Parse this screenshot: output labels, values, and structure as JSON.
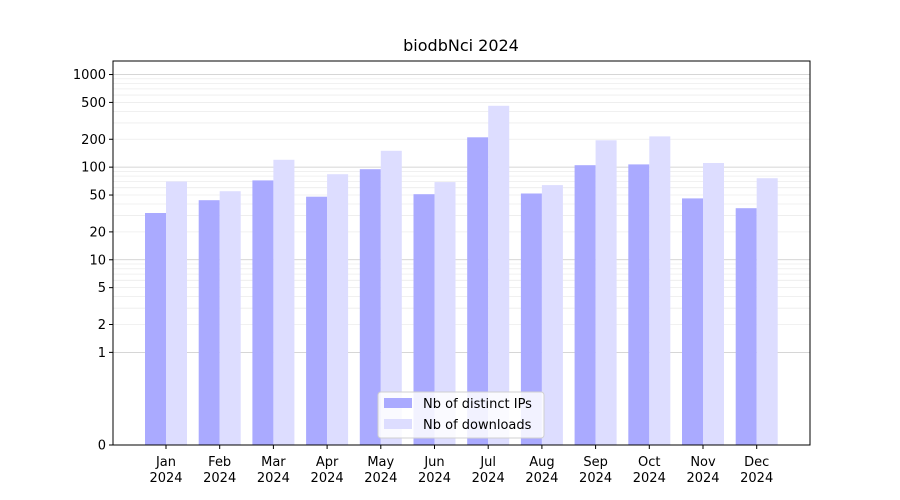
{
  "chart_data": {
    "type": "bar",
    "title": "biodbNci 2024",
    "xlabel": "",
    "ylabel": "",
    "scale": "symlog",
    "ylim": [
      0,
      1400
    ],
    "categories": [
      {
        "month": "Jan",
        "year": "2024"
      },
      {
        "month": "Feb",
        "year": "2024"
      },
      {
        "month": "Mar",
        "year": "2024"
      },
      {
        "month": "Apr",
        "year": "2024"
      },
      {
        "month": "May",
        "year": "2024"
      },
      {
        "month": "Jun",
        "year": "2024"
      },
      {
        "month": "Jul",
        "year": "2024"
      },
      {
        "month": "Aug",
        "year": "2024"
      },
      {
        "month": "Sep",
        "year": "2024"
      },
      {
        "month": "Oct",
        "year": "2024"
      },
      {
        "month": "Nov",
        "year": "2024"
      },
      {
        "month": "Dec",
        "year": "2024"
      }
    ],
    "series": [
      {
        "name": "Nb of distinct IPs",
        "color": "#aaaaff",
        "values": [
          32,
          44,
          72,
          48,
          95,
          51,
          210,
          52,
          105,
          107,
          46,
          36
        ]
      },
      {
        "name": "Nb of downloads",
        "color": "#ddddff",
        "values": [
          70,
          55,
          120,
          84,
          150,
          69,
          460,
          64,
          195,
          215,
          111,
          76
        ]
      }
    ],
    "yticks": [
      {
        "label": "0",
        "value": 0
      },
      {
        "label": "1",
        "value": 1
      },
      {
        "label": "2",
        "value": 2
      },
      {
        "label": "5",
        "value": 5
      },
      {
        "label": "10",
        "value": 10
      },
      {
        "label": "20",
        "value": 20
      },
      {
        "label": "50",
        "value": 50
      },
      {
        "label": "100",
        "value": 100
      },
      {
        "label": "200",
        "value": 200
      },
      {
        "label": "500",
        "value": 500
      },
      {
        "label": "1000",
        "value": 1000
      }
    ],
    "grid": true,
    "legend_position": "bottom-center"
  }
}
